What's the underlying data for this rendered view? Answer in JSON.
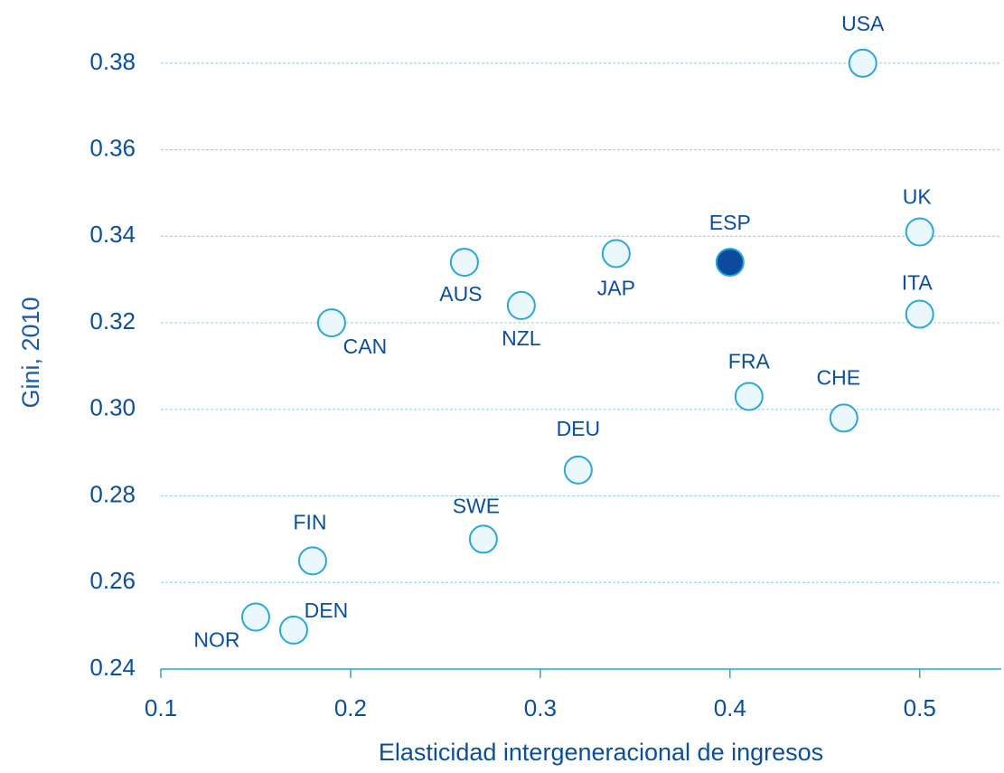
{
  "chart_data": {
    "type": "scatter",
    "x_label": "Elasticidad intergeneracional de ingresos",
    "y_label": "Gini, 2010",
    "labels": [
      "USA",
      "UK",
      "ITA",
      "ESP",
      "JAP",
      "AUS",
      "NZL",
      "CAN",
      "FRA",
      "CHE",
      "DEU",
      "SWE",
      "FIN",
      "NOR",
      "DEN"
    ],
    "x": [
      0.47,
      0.5,
      0.5,
      0.4,
      0.34,
      0.26,
      0.29,
      0.19,
      0.41,
      0.46,
      0.32,
      0.27,
      0.18,
      0.15,
      0.17
    ],
    "values": [
      0.38,
      0.341,
      0.322,
      0.334,
      0.336,
      0.334,
      0.324,
      0.32,
      0.303,
      0.298,
      0.286,
      0.27,
      0.265,
      0.252,
      0.249
    ],
    "colors": [
      "#eaf7fb",
      "#eaf7fb",
      "#eaf7fb",
      "#0b4a9c",
      "#eaf7fb",
      "#eaf7fb",
      "#eaf7fb",
      "#eaf7fb",
      "#eaf7fb",
      "#eaf7fb",
      "#eaf7fb",
      "#eaf7fb",
      "#eaf7fb",
      "#eaf7fb",
      "#eaf7fb"
    ],
    "edge_color": "#2aa7d8",
    "xlim": [
      0.1,
      0.543
    ],
    "ylim": [
      0.24,
      0.3946
    ],
    "xticks": [
      0.1,
      0.2,
      0.3,
      0.4,
      0.5
    ],
    "yticks": [
      {
        "value": 0.24,
        "label": "0.24"
      },
      {
        "value": 0.26,
        "label": "0.26"
      },
      {
        "value": 0.28,
        "label": "0.28"
      },
      {
        "value": 0.3,
        "label": "0.30"
      },
      {
        "value": 0.32,
        "label": "0.32"
      },
      {
        "value": 0.34,
        "label": "0.34"
      },
      {
        "value": 0.36,
        "label": "0.36"
      },
      {
        "value": 0.38,
        "label": "0.38"
      }
    ],
    "grid": true
  }
}
